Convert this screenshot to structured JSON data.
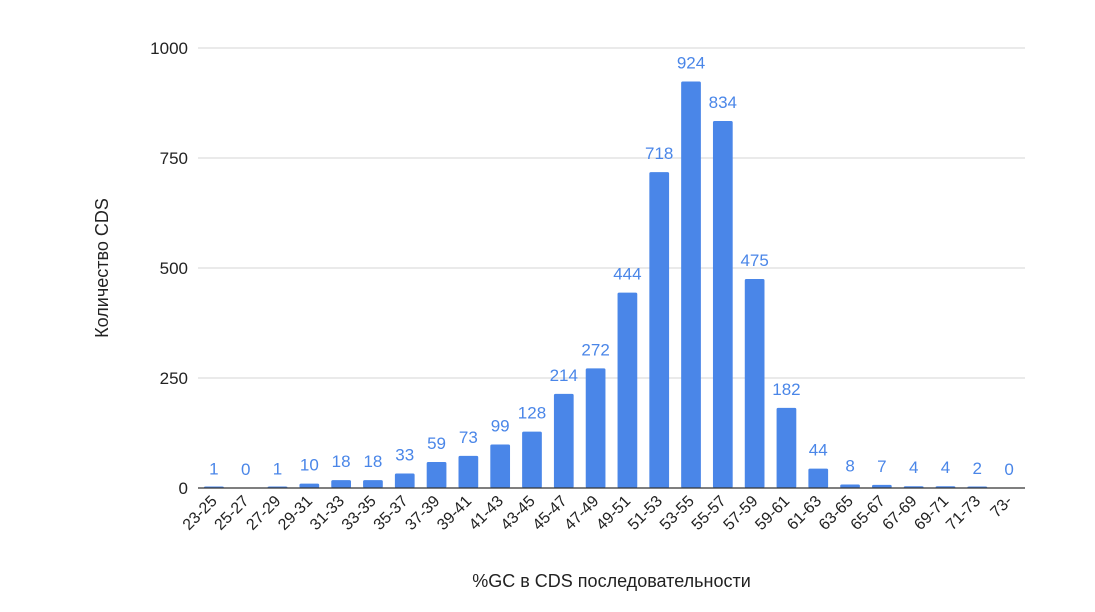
{
  "chart_data": {
    "type": "bar",
    "title": "",
    "xlabel": "%GC в CDS последовательности",
    "ylabel": "Количество CDS",
    "ylim": [
      0,
      1000
    ],
    "yticks": [
      0,
      250,
      500,
      750,
      1000
    ],
    "grid": true,
    "legend": "none",
    "bar_color": "#4a86e8",
    "label_color": "#4a86e8",
    "categories": [
      "23-25",
      "25-27",
      "27-29",
      "29-31",
      "31-33",
      "33-35",
      "35-37",
      "37-39",
      "39-41",
      "41-43",
      "43-45",
      "45-47",
      "47-49",
      "49-51",
      "51-53",
      "53-55",
      "55-57",
      "57-59",
      "59-61",
      "61-63",
      "63-65",
      "65-67",
      "67-69",
      "69-71",
      "71-73",
      "73-"
    ],
    "values": [
      1,
      0,
      1,
      10,
      18,
      18,
      33,
      59,
      73,
      99,
      128,
      214,
      272,
      444,
      718,
      924,
      834,
      475,
      182,
      44,
      8,
      7,
      4,
      4,
      2,
      0
    ]
  }
}
